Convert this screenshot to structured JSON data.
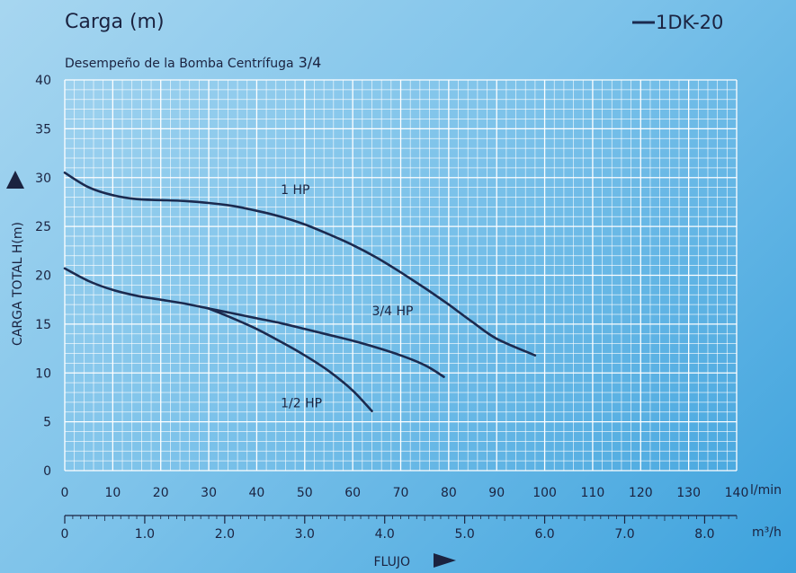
{
  "header": {
    "title": "Carga (m)",
    "subtitle": "Desempeño de la Bomba Centrífuga",
    "subtitle_size": "3/4",
    "legend_label": "1DK-20",
    "legend_color": "#1b2a4f"
  },
  "colors": {
    "grid": "#ffffff",
    "line": "#1b2a4f",
    "text": "#1b2340"
  },
  "chart_data": {
    "type": "line",
    "title": "Carga (m)",
    "subtitle": "Desempeño de la Bomba Centrífuga 3/4",
    "ylabel": "CARGA TOTAL H(m)",
    "xlabel": "FLUJO",
    "x_unit": "l/min",
    "x2_unit": "m³/h",
    "xlim": [
      0,
      140
    ],
    "ylim": [
      0,
      40
    ],
    "x_ticks": [
      0,
      10,
      20,
      30,
      40,
      50,
      60,
      70,
      80,
      90,
      100,
      110,
      120,
      130,
      140
    ],
    "y_ticks": [
      0,
      5,
      10,
      15,
      20,
      25,
      30,
      35,
      40
    ],
    "x2_ticks": [
      "0",
      "1.0",
      "2.0",
      "3.0",
      "4.0",
      "5.0",
      "6.0",
      "7.0",
      "8.0"
    ],
    "x2_tick_values": [
      0,
      1,
      2,
      3,
      4,
      5,
      6,
      7,
      8
    ],
    "grid": true,
    "legend": "top-right",
    "series": [
      {
        "name": "1 HP",
        "label": "1 HP",
        "label_at": [
          45,
          28.3
        ],
        "points": [
          [
            0,
            30.5
          ],
          [
            5,
            29
          ],
          [
            10,
            28.2
          ],
          [
            15,
            27.8
          ],
          [
            20,
            27.7
          ],
          [
            25,
            27.6
          ],
          [
            30,
            27.4
          ],
          [
            35,
            27.1
          ],
          [
            40,
            26.6
          ],
          [
            45,
            26
          ],
          [
            50,
            25.2
          ],
          [
            55,
            24.2
          ],
          [
            60,
            23.1
          ],
          [
            65,
            21.8
          ],
          [
            70,
            20.3
          ],
          [
            75,
            18.7
          ],
          [
            80,
            17
          ],
          [
            85,
            15.2
          ],
          [
            90,
            13.5
          ],
          [
            98,
            11.8
          ]
        ]
      },
      {
        "name": "3/4 HP",
        "label": "3/4 HP",
        "label_at": [
          64,
          15.9
        ],
        "points": [
          [
            0,
            20.7
          ],
          [
            5,
            19.4
          ],
          [
            10,
            18.5
          ],
          [
            15,
            17.9
          ],
          [
            20,
            17.5
          ],
          [
            25,
            17.1
          ],
          [
            30,
            16.6
          ],
          [
            35,
            16.1
          ],
          [
            40,
            15.6
          ],
          [
            45,
            15.1
          ],
          [
            50,
            14.5
          ],
          [
            55,
            13.9
          ],
          [
            60,
            13.3
          ],
          [
            65,
            12.6
          ],
          [
            70,
            11.8
          ],
          [
            75,
            10.8
          ],
          [
            79,
            9.6
          ]
        ]
      },
      {
        "name": "1/2 HP",
        "label": "1/2 HP",
        "label_at": [
          45,
          6.5
        ],
        "points": [
          [
            30,
            16.6
          ],
          [
            35,
            15.6
          ],
          [
            40,
            14.5
          ],
          [
            45,
            13.2
          ],
          [
            50,
            11.8
          ],
          [
            55,
            10.2
          ],
          [
            60,
            8.2
          ],
          [
            64,
            6.1
          ]
        ]
      }
    ]
  }
}
